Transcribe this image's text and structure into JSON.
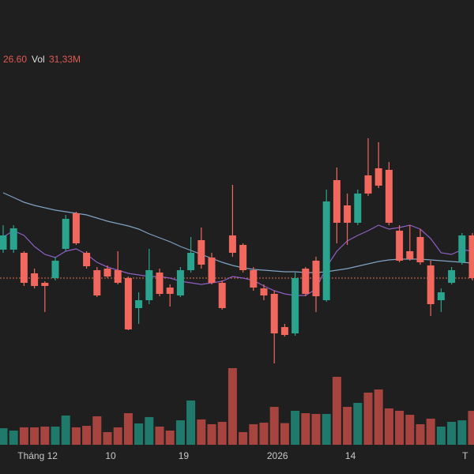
{
  "chart_data": {
    "type": "candlestick",
    "legend_close": "26.60",
    "volume_label": "Vol",
    "volume_text": "31,33M",
    "categories": [
      null,
      null,
      null,
      "Tháng 12",
      null,
      null,
      null,
      null,
      null,
      null,
      "10",
      null,
      null,
      null,
      null,
      null,
      null,
      "19",
      null,
      null,
      null,
      null,
      null,
      null,
      null,
      null,
      "2026",
      null,
      null,
      null,
      null,
      null,
      null,
      "14",
      null,
      null,
      null,
      null,
      null,
      null,
      null,
      null,
      null,
      null,
      "T",
      null
    ],
    "open": [
      27.32,
      27.32,
      27.24,
      26.72,
      26.48,
      26.6,
      27.34,
      28.24,
      27.24,
      26.8,
      26.84,
      26.8,
      26.6,
      25.84,
      26.04,
      26.74,
      26.36,
      26.16,
      26.8,
      27.56,
      27.12,
      26.48,
      27.68,
      27.44,
      26.8,
      26.34,
      26.2,
      25.36,
      25.2,
      26.84,
      27.04,
      26.04,
      29.08,
      28.44,
      28.0,
      29.2,
      29.38,
      29.34,
      27.8,
      27.28,
      27.64,
      26.92,
      26.04,
      26.48,
      27.0,
      27.68
    ],
    "high": [
      27.94,
      27.94,
      27.28,
      26.84,
      26.52,
      27.14,
      28.2,
      28.28,
      27.28,
      26.88,
      26.92,
      27.28,
      26.64,
      26.24,
      27.34,
      26.84,
      26.44,
      26.88,
      27.64,
      27.88,
      27.24,
      26.54,
      28.96,
      27.48,
      26.88,
      26.44,
      26.28,
      25.44,
      26.74,
      26.88,
      27.14,
      28.84,
      29.4,
      28.74,
      28.84,
      30.14,
      30.04,
      29.54,
      27.94,
      27.94,
      27.84,
      27.04,
      26.34,
      26.88,
      27.74,
      27.74
    ],
    "low": [
      27.24,
      27.24,
      26.4,
      26.34,
      25.74,
      26.54,
      27.28,
      27.44,
      26.84,
      26.12,
      26.6,
      26.44,
      25.28,
      25.44,
      25.94,
      26.14,
      25.88,
      26.12,
      26.74,
      26.84,
      26.44,
      25.8,
      27.14,
      26.74,
      26.28,
      26.04,
      24.44,
      25.12,
      25.14,
      26.14,
      25.74,
      26.0,
      27.48,
      27.44,
      27.94,
      28.68,
      28.88,
      27.94,
      27.0,
      27.04,
      26.94,
      25.64,
      25.74,
      26.44,
      26.94,
      26.54
    ],
    "close": [
      27.68,
      27.86,
      26.48,
      26.4,
      26.4,
      27.04,
      28.1,
      27.48,
      26.9,
      26.16,
      26.64,
      26.48,
      25.3,
      26.04,
      26.8,
      26.2,
      26.2,
      26.8,
      27.24,
      26.94,
      26.48,
      25.84,
      27.24,
      26.8,
      26.36,
      26.16,
      25.2,
      25.16,
      26.6,
      26.2,
      26.14,
      28.54,
      28.0,
      28.0,
      28.74,
      28.74,
      28.94,
      28.0,
      27.04,
      27.08,
      27.0,
      25.94,
      26.24,
      26.8,
      27.68,
      26.6
    ],
    "volume": [
      15.3,
      13.1,
      16.1,
      16.1,
      16.8,
      16.8,
      27.0,
      16.1,
      17.5,
      26.3,
      11.7,
      16.1,
      29.2,
      19.7,
      25.6,
      16.8,
      13.1,
      22.6,
      40.9,
      23.4,
      19.0,
      21.2,
      70.8,
      11.7,
      19.0,
      20.4,
      35.0,
      20.0,
      31.4,
      29.2,
      28.5,
      28.5,
      62.8,
      35.0,
      38.7,
      48.2,
      51.1,
      33.6,
      31.4,
      27.7,
      19.0,
      24.1,
      16.8,
      21.2,
      22.6,
      31.33
    ],
    "ma": [
      {
        "color": "#7fa3c4",
        "values": [
          28.76,
          28.64,
          28.52,
          28.44,
          28.38,
          28.32,
          28.28,
          28.24,
          28.2,
          28.12,
          28.04,
          27.98,
          27.92,
          27.84,
          27.72,
          27.62,
          27.52,
          27.4,
          27.3,
          27.2,
          27.1,
          27.0,
          26.92,
          26.86,
          26.82,
          26.8,
          26.78,
          26.76,
          26.76,
          26.74,
          26.74,
          26.76,
          26.8,
          26.84,
          26.9,
          26.96,
          27.02,
          27.06,
          27.08,
          27.08,
          27.08,
          27.06,
          27.04,
          27.02,
          27.0,
          26.98
        ]
      },
      {
        "color": "#8e5fc4",
        "values": [
          27.64,
          27.8,
          27.68,
          27.4,
          27.2,
          27.12,
          27.28,
          27.34,
          27.2,
          27.0,
          26.88,
          26.8,
          26.72,
          26.68,
          26.64,
          26.64,
          26.6,
          26.52,
          26.48,
          26.44,
          26.48,
          26.52,
          26.64,
          26.6,
          26.54,
          26.4,
          26.28,
          26.2,
          26.16,
          26.16,
          26.32,
          26.88,
          27.28,
          27.54,
          27.68,
          27.8,
          27.94,
          27.84,
          27.88,
          27.94,
          27.84,
          27.6,
          27.24,
          27.2,
          27.32,
          27.28
        ]
      }
    ],
    "last_price": 26.6,
    "last_price_color": "#e0704a",
    "up_color": "#2aa38f",
    "down_color": "#f2675e",
    "volume_up_color": "#1f7a6b",
    "volume_down_color": "#a8443f",
    "ylim": [
      21.64,
      33.64
    ],
    "volume_ylim": [
      0,
      100
    ]
  }
}
